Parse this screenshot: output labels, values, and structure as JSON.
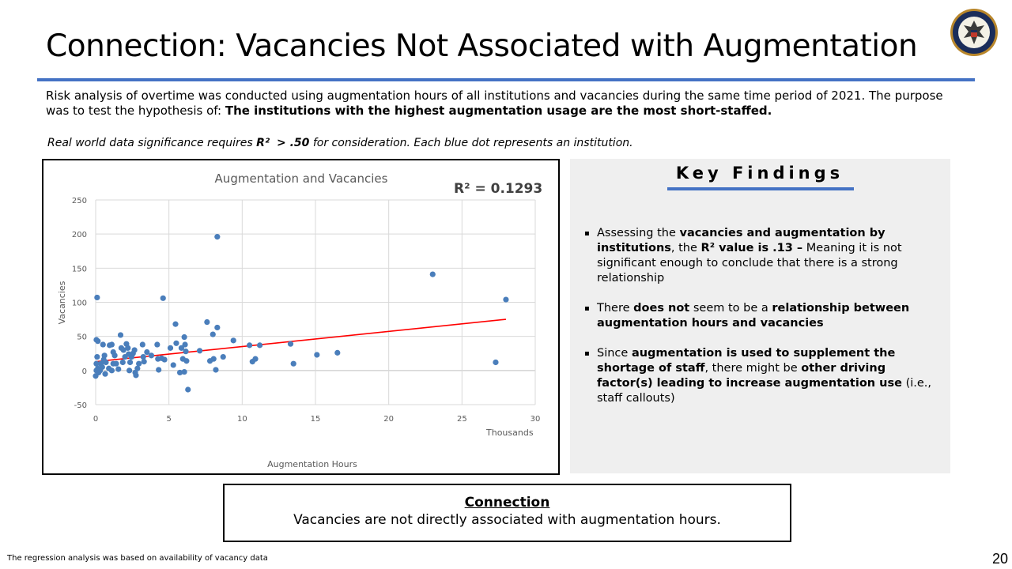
{
  "header": {
    "title": "Connection: Vacancies Not Associated with Augmentation"
  },
  "intro": {
    "text_plain": "Risk analysis of overtime was conducted using augmentation hours of all institutions and vacancies during the same time period of 2021. The purpose was to test the hypothesis of: ",
    "text_bold": "The institutions with the highest augmentation usage are the most short-staffed."
  },
  "note": {
    "prefix": "Real world data significance requires ",
    "r2_label": "R²",
    "threshold": "> .50",
    "suffix": " for consideration. Each blue dot represents an institution."
  },
  "key_findings": {
    "title": "Key Findings",
    "items": [
      {
        "segments": [
          {
            "text": "Assessing the ",
            "bold": false
          },
          {
            "text": "vacancies and augmentation by institutions",
            "bold": true
          },
          {
            "text": ", the ",
            "bold": false
          },
          {
            "text": "R² value is .13 –",
            "bold": true
          },
          {
            "text": " Meaning it is not significant enough to conclude that there is a strong relationship",
            "bold": false
          }
        ]
      },
      {
        "segments": [
          {
            "text": "There ",
            "bold": false
          },
          {
            "text": "does not",
            "bold": true
          },
          {
            "text": " seem to be a ",
            "bold": false
          },
          {
            "text": "relationship between augmentation hours and vacancies",
            "bold": true
          }
        ]
      },
      {
        "segments": [
          {
            "text": "Since ",
            "bold": false
          },
          {
            "text": "augmentation is used to supplement the shortage of staff",
            "bold": true
          },
          {
            "text": ", there might be ",
            "bold": false
          },
          {
            "text": "other driving factor(s) leading to increase augmentation use",
            "bold": true
          },
          {
            "text": " (i.e., staff callouts)",
            "bold": false
          }
        ]
      }
    ]
  },
  "connection": {
    "title": "Connection",
    "text": "Vacancies are not directly associated with augmentation hours."
  },
  "footnote": "The regression analysis was based on availability of vacancy data",
  "page_number": "20",
  "colors": {
    "accent": "#4472c4",
    "trendline": "#ff0000",
    "points": "#4a7ebb"
  },
  "icons": {
    "seal": "doj-seal-icon"
  },
  "chart_data": {
    "type": "scatter",
    "title": "Augmentation and Vacancies",
    "r2_annotation": "R² = 0.1293",
    "xlabel": "Augmentation Hours",
    "x_unit_label": "Thousands",
    "ylabel": "Vacancies",
    "xlim": [
      0,
      30
    ],
    "ylim": [
      -50,
      250
    ],
    "xticks": [
      0,
      5,
      10,
      15,
      20,
      25,
      30
    ],
    "yticks": [
      -50,
      0,
      50,
      100,
      150,
      200,
      250
    ],
    "grid": true,
    "trendline": {
      "x": [
        0,
        28
      ],
      "y": [
        13,
        75
      ],
      "color": "#ff0000"
    },
    "series": [
      {
        "points": [
          [
            0.1,
            107
          ],
          [
            0.05,
            45
          ],
          [
            0.15,
            43
          ],
          [
            0.1,
            20
          ],
          [
            0.05,
            10
          ],
          [
            0.15,
            3
          ],
          [
            0.05,
            0
          ],
          [
            0.2,
            -3
          ],
          [
            0.0,
            -8
          ],
          [
            0.35,
            10
          ],
          [
            0.5,
            38
          ],
          [
            0.6,
            22
          ],
          [
            0.55,
            16
          ],
          [
            0.45,
            5
          ],
          [
            0.65,
            -5
          ],
          [
            0.3,
            0
          ],
          [
            0.7,
            12
          ],
          [
            0.9,
            3
          ],
          [
            0.95,
            37
          ],
          [
            1.1,
            38
          ],
          [
            1.2,
            27
          ],
          [
            1.3,
            22
          ],
          [
            1.1,
            0
          ],
          [
            1.2,
            10
          ],
          [
            1.4,
            10
          ],
          [
            1.55,
            2
          ],
          [
            1.7,
            52
          ],
          [
            1.75,
            33
          ],
          [
            1.9,
            30
          ],
          [
            2.0,
            20
          ],
          [
            2.1,
            39
          ],
          [
            2.2,
            33
          ],
          [
            2.25,
            24
          ],
          [
            2.3,
            0
          ],
          [
            2.35,
            12
          ],
          [
            1.85,
            12
          ],
          [
            2.45,
            20
          ],
          [
            2.55,
            25
          ],
          [
            2.65,
            30
          ],
          [
            2.7,
            -3
          ],
          [
            2.75,
            -7
          ],
          [
            2.85,
            3
          ],
          [
            2.95,
            10
          ],
          [
            3.2,
            38
          ],
          [
            3.25,
            20
          ],
          [
            3.3,
            13
          ],
          [
            3.5,
            27
          ],
          [
            3.8,
            22
          ],
          [
            4.2,
            38
          ],
          [
            4.25,
            17
          ],
          [
            4.3,
            1
          ],
          [
            4.5,
            18
          ],
          [
            4.6,
            106
          ],
          [
            4.7,
            16
          ],
          [
            5.1,
            33
          ],
          [
            5.3,
            8
          ],
          [
            5.45,
            68
          ],
          [
            5.5,
            40
          ],
          [
            5.75,
            -3
          ],
          [
            5.85,
            33
          ],
          [
            5.95,
            17
          ],
          [
            6.05,
            49
          ],
          [
            6.1,
            38
          ],
          [
            6.15,
            28
          ],
          [
            6.2,
            14
          ],
          [
            6.3,
            -28
          ],
          [
            6.05,
            -2
          ],
          [
            7.1,
            29
          ],
          [
            7.6,
            71
          ],
          [
            7.8,
            14
          ],
          [
            8.0,
            53
          ],
          [
            8.05,
            17
          ],
          [
            8.2,
            1
          ],
          [
            8.3,
            196
          ],
          [
            8.3,
            63
          ],
          [
            8.7,
            20
          ],
          [
            9.4,
            44
          ],
          [
            10.5,
            37
          ],
          [
            10.7,
            13
          ],
          [
            10.9,
            17
          ],
          [
            11.2,
            37
          ],
          [
            13.3,
            39
          ],
          [
            13.5,
            10
          ],
          [
            15.1,
            23
          ],
          [
            16.5,
            26
          ],
          [
            23.0,
            141
          ],
          [
            27.3,
            12
          ],
          [
            28.0,
            104
          ]
        ]
      }
    ]
  }
}
